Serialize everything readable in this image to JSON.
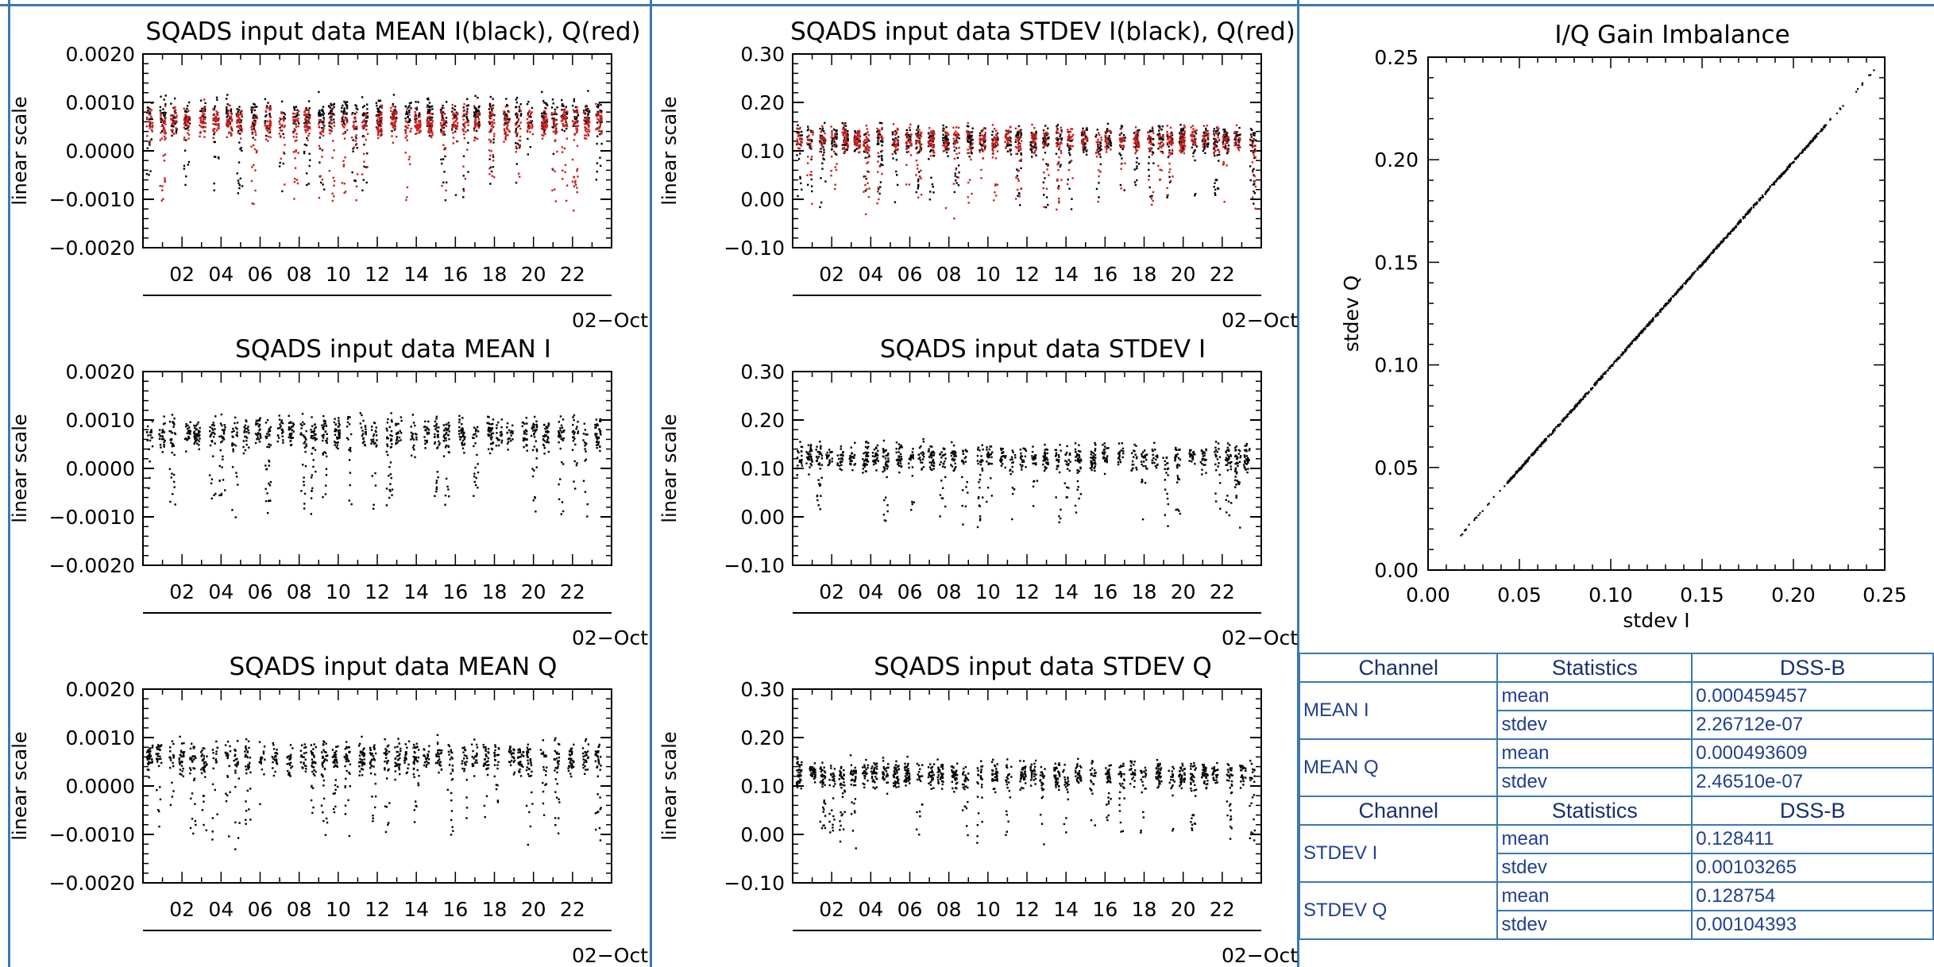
{
  "panels": [
    {
      "title": "SQADS input data MEAN I(black), Q(red)",
      "ylabel": "linear scale",
      "date_label": "02−Oct",
      "yticks": [
        "0.0020",
        "0.0010",
        "0.0000",
        "−0.0010",
        "−0.0020"
      ],
      "xticks": [
        "02",
        "04",
        "06",
        "08",
        "10",
        "12",
        "14",
        "16",
        "18",
        "20",
        "22"
      ]
    },
    {
      "title": "SQADS input data STDEV I(black), Q(red)",
      "ylabel": "linear scale",
      "date_label": "02−Oct",
      "yticks": [
        "0.30",
        "0.20",
        "0.10",
        "0.00",
        "−0.10"
      ],
      "xticks": [
        "02",
        "04",
        "06",
        "08",
        "10",
        "12",
        "14",
        "16",
        "18",
        "20",
        "22"
      ]
    },
    {
      "title": "SQADS input data MEAN I",
      "ylabel": "linear scale",
      "date_label": "02−Oct",
      "yticks": [
        "0.0020",
        "0.0010",
        "0.0000",
        "−0.0010",
        "−0.0020"
      ],
      "xticks": [
        "02",
        "04",
        "06",
        "08",
        "10",
        "12",
        "14",
        "16",
        "18",
        "20",
        "22"
      ]
    },
    {
      "title": "SQADS input data STDEV I",
      "ylabel": "linear scale",
      "date_label": "02−Oct",
      "yticks": [
        "0.30",
        "0.20",
        "0.10",
        "0.00",
        "−0.10"
      ],
      "xticks": [
        "02",
        "04",
        "06",
        "08",
        "10",
        "12",
        "14",
        "16",
        "18",
        "20",
        "22"
      ]
    },
    {
      "title": "SQADS input data MEAN Q",
      "ylabel": "linear scale",
      "date_label": "02−Oct",
      "yticks": [
        "0.0020",
        "0.0010",
        "0.0000",
        "−0.0010",
        "−0.0020"
      ],
      "xticks": [
        "02",
        "04",
        "06",
        "08",
        "10",
        "12",
        "14",
        "16",
        "18",
        "20",
        "22"
      ]
    },
    {
      "title": "SQADS input data STDEV Q",
      "ylabel": "linear scale",
      "date_label": "02−Oct",
      "yticks": [
        "0.30",
        "0.20",
        "0.10",
        "0.00",
        "−0.10"
      ],
      "xticks": [
        "02",
        "04",
        "06",
        "08",
        "10",
        "12",
        "14",
        "16",
        "18",
        "20",
        "22"
      ]
    }
  ],
  "chart_data": [
    {
      "type": "scatter",
      "title": "SQADS input data MEAN I(black), Q(red)",
      "xlabel": "",
      "ylabel": "linear scale",
      "x_range_hours": [
        0,
        24
      ],
      "ylim": [
        -0.002,
        0.002
      ],
      "series": [
        {
          "color": "#000000",
          "typical_center": 0.00075,
          "typical_spread": 0.0006
        },
        {
          "color": "#cc1f1f",
          "typical_center": 0.0006,
          "typical_spread": 0.0006
        }
      ]
    },
    {
      "type": "scatter",
      "title": "SQADS input data STDEV I(black), Q(red)",
      "xlabel": "",
      "ylabel": "linear scale",
      "x_range_hours": [
        0,
        24
      ],
      "ylim": [
        -0.1,
        0.3
      ],
      "series": [
        {
          "color": "#000000",
          "typical_center": 0.125,
          "typical_spread": 0.05
        },
        {
          "color": "#cc1f1f",
          "typical_center": 0.125,
          "typical_spread": 0.05
        }
      ]
    },
    {
      "type": "scatter",
      "title": "SQADS input data MEAN I",
      "xlabel": "",
      "ylabel": "linear scale",
      "x_range_hours": [
        0,
        24
      ],
      "ylim": [
        -0.002,
        0.002
      ],
      "series": [
        {
          "color": "#000000",
          "typical_center": 0.00075,
          "typical_spread": 0.0006
        }
      ]
    },
    {
      "type": "scatter",
      "title": "SQADS input data STDEV I",
      "xlabel": "",
      "ylabel": "linear scale",
      "x_range_hours": [
        0,
        24
      ],
      "ylim": [
        -0.1,
        0.3
      ],
      "series": [
        {
          "color": "#000000",
          "typical_center": 0.125,
          "typical_spread": 0.05
        }
      ]
    },
    {
      "type": "scatter",
      "title": "SQADS input data MEAN Q",
      "xlabel": "",
      "ylabel": "linear scale",
      "x_range_hours": [
        0,
        24
      ],
      "ylim": [
        -0.002,
        0.002
      ],
      "series": [
        {
          "color": "#000000",
          "typical_center": 0.0006,
          "typical_spread": 0.0006
        }
      ]
    },
    {
      "type": "scatter",
      "title": "SQADS input data STDEV Q",
      "xlabel": "",
      "ylabel": "linear scale",
      "x_range_hours": [
        0,
        24
      ],
      "ylim": [
        -0.1,
        0.3
      ],
      "series": [
        {
          "color": "#000000",
          "typical_center": 0.125,
          "typical_spread": 0.05
        }
      ]
    },
    {
      "type": "scatter",
      "title": "I/Q Gain Imbalance",
      "xlabel": "stdev I",
      "ylabel": "stdev Q",
      "xlim": [
        0,
        0.25
      ],
      "ylim": [
        0,
        0.25
      ],
      "xticks": [
        "0.00",
        "0.05",
        "0.10",
        "0.15",
        "0.20",
        "0.25"
      ],
      "yticks": [
        "0.25",
        "0.20",
        "0.15",
        "0.10",
        "0.05",
        "0.00"
      ],
      "series": [
        {
          "color": "#000000",
          "x_start": 0.015,
          "x_end": 0.245,
          "slope": 1.0
        }
      ]
    }
  ],
  "stats_table": {
    "sections": [
      {
        "header": [
          "Channel",
          "Statistics",
          "DSS-B"
        ],
        "rows": [
          {
            "channel": "MEAN I",
            "mean_label": "mean",
            "mean": "0.000459457",
            "stdev_label": "stdev",
            "stdev": "2.26712e-07"
          },
          {
            "channel": "MEAN Q",
            "mean_label": "mean",
            "mean": "0.000493609",
            "stdev_label": "stdev",
            "stdev": "2.46510e-07"
          }
        ]
      },
      {
        "header": [
          "Channel",
          "Statistics",
          "DSS-B"
        ],
        "rows": [
          {
            "channel": "STDEV I",
            "mean_label": "mean",
            "mean": "0.128411",
            "stdev_label": "stdev",
            "stdev": "0.00103265"
          },
          {
            "channel": "STDEV Q",
            "mean_label": "mean",
            "mean": "0.128754",
            "stdev_label": "stdev",
            "stdev": "0.00104393"
          }
        ]
      }
    ]
  }
}
